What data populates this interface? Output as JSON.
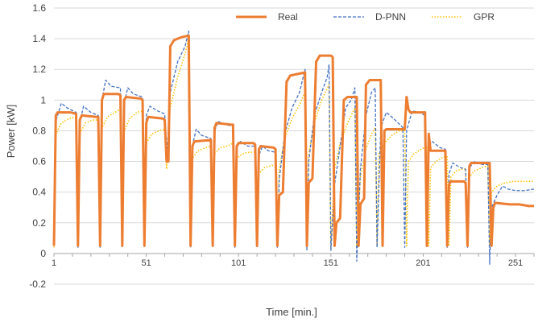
{
  "chart_data": {
    "type": "line",
    "title": "",
    "xlabel": "Time [min.]",
    "ylabel": "Power [kW]",
    "xlim": [
      1,
      261
    ],
    "ylim": [
      -0.2,
      1.6
    ],
    "y_ticks": [
      -0.2,
      0,
      0.2,
      0.4,
      0.6,
      0.8,
      1,
      1.2,
      1.4,
      1.6
    ],
    "y_tick_labels": [
      "-0.2",
      "0",
      "0.2",
      "0.4",
      "0.6",
      "0.8",
      "1",
      "1.2",
      "1.4",
      "1.6"
    ],
    "x_ticks": [
      1,
      51,
      101,
      151,
      201,
      251
    ],
    "x_tick_labels": [
      "1",
      "51",
      "101",
      "151",
      "201",
      "251"
    ],
    "grid": "horizontal",
    "legend_position": "top-right",
    "series": [
      {
        "name": "Real",
        "color": "#ED7D31",
        "style": "solid",
        "points": [
          [
            1,
            0.05
          ],
          [
            2,
            0.9
          ],
          [
            3,
            0.92
          ],
          [
            10,
            0.92
          ],
          [
            13,
            0.91
          ],
          [
            14,
            0.05
          ],
          [
            15,
            0.87
          ],
          [
            16,
            0.9
          ],
          [
            24,
            0.89
          ],
          [
            25,
            0.89
          ],
          [
            26,
            0.05
          ],
          [
            27,
            1.0
          ],
          [
            28,
            1.04
          ],
          [
            36,
            1.04
          ],
          [
            37,
            1.03
          ],
          [
            38,
            0.05
          ],
          [
            39,
            1.0
          ],
          [
            40,
            1.02
          ],
          [
            48,
            1.01
          ],
          [
            49,
            1.0
          ],
          [
            50,
            0.05
          ],
          [
            51,
            0.85
          ],
          [
            52,
            0.89
          ],
          [
            60,
            0.88
          ],
          [
            61,
            0.87
          ],
          [
            62,
            0.6
          ],
          [
            63,
            0.6
          ],
          [
            64,
            1.35
          ],
          [
            66,
            1.39
          ],
          [
            70,
            1.41
          ],
          [
            74,
            1.42
          ],
          [
            75,
            0.05
          ],
          [
            76,
            0.7
          ],
          [
            77,
            0.73
          ],
          [
            86,
            0.74
          ],
          [
            87,
            0.05
          ],
          [
            88,
            0.82
          ],
          [
            89,
            0.85
          ],
          [
            97,
            0.84
          ],
          [
            98,
            0.84
          ],
          [
            99,
            0.05
          ],
          [
            100,
            0.7
          ],
          [
            101,
            0.72
          ],
          [
            109,
            0.72
          ],
          [
            110,
            0.71
          ],
          [
            111,
            0.05
          ],
          [
            112,
            0.68
          ],
          [
            113,
            0.7
          ],
          [
            120,
            0.69
          ],
          [
            121,
            0.68
          ],
          [
            122,
            0.05
          ],
          [
            123,
            0.38
          ],
          [
            125,
            0.4
          ],
          [
            127,
            1.12
          ],
          [
            129,
            1.16
          ],
          [
            137,
            1.18
          ],
          [
            138,
            0.05
          ],
          [
            139,
            0.46
          ],
          [
            141,
            0.49
          ],
          [
            143,
            1.25
          ],
          [
            145,
            1.29
          ],
          [
            151,
            1.29
          ],
          [
            152,
            1.28
          ],
          [
            153,
            0.05
          ],
          [
            154,
            0.2
          ],
          [
            156,
            0.23
          ],
          [
            158,
            1.0
          ],
          [
            160,
            1.02
          ],
          [
            165,
            1.02
          ],
          [
            166,
            0.05
          ],
          [
            167,
            0.32
          ],
          [
            169,
            0.36
          ],
          [
            170,
            1.1
          ],
          [
            172,
            1.13
          ],
          [
            178,
            1.13
          ],
          [
            179,
            0.05
          ],
          [
            180,
            0.8
          ],
          [
            181,
            0.81
          ],
          [
            191,
            0.81
          ],
          [
            192,
            1.02
          ],
          [
            193,
            0.94
          ],
          [
            194,
            0.92
          ],
          [
            202,
            0.92
          ],
          [
            203,
            0.05
          ],
          [
            204,
            0.78
          ],
          [
            205,
            0.67
          ],
          [
            213,
            0.67
          ],
          [
            214,
            0.05
          ],
          [
            215,
            0.45
          ],
          [
            216,
            0.47
          ],
          [
            223,
            0.47
          ],
          [
            224,
            0.46
          ],
          [
            225,
            0.05
          ],
          [
            226,
            0.57
          ],
          [
            227,
            0.59
          ],
          [
            236,
            0.59
          ],
          [
            237,
            0.59
          ],
          [
            238,
            0.05
          ],
          [
            239,
            0.3
          ],
          [
            240,
            0.33
          ],
          [
            248,
            0.32
          ],
          [
            253,
            0.32
          ],
          [
            258,
            0.31
          ],
          [
            261,
            0.31
          ]
        ]
      },
      {
        "name": "D-PNN",
        "color": "#4472C4",
        "style": "dashed",
        "points": [
          [
            1,
            0.05
          ],
          [
            2,
            0.86
          ],
          [
            5,
            0.98
          ],
          [
            8,
            0.95
          ],
          [
            13,
            0.92
          ],
          [
            14,
            0.04
          ],
          [
            15,
            0.85
          ],
          [
            17,
            0.96
          ],
          [
            21,
            0.92
          ],
          [
            25,
            0.9
          ],
          [
            26,
            0.04
          ],
          [
            27,
            1.0
          ],
          [
            29,
            1.13
          ],
          [
            32,
            1.09
          ],
          [
            37,
            1.08
          ],
          [
            38,
            0.04
          ],
          [
            39,
            0.98
          ],
          [
            41,
            1.08
          ],
          [
            44,
            1.04
          ],
          [
            49,
            1.02
          ],
          [
            50,
            0.04
          ],
          [
            51,
            0.9
          ],
          [
            53,
            0.96
          ],
          [
            57,
            0.93
          ],
          [
            61,
            0.91
          ],
          [
            62,
            0.6
          ],
          [
            64,
            1.05
          ],
          [
            68,
            1.25
          ],
          [
            72,
            1.35
          ],
          [
            74,
            1.45
          ],
          [
            75,
            0.04
          ],
          [
            76,
            0.7
          ],
          [
            78,
            0.81
          ],
          [
            81,
            0.77
          ],
          [
            86,
            0.75
          ],
          [
            87,
            0.04
          ],
          [
            88,
            0.8
          ],
          [
            90,
            0.86
          ],
          [
            94,
            0.84
          ],
          [
            98,
            0.83
          ],
          [
            99,
            0.04
          ],
          [
            100,
            0.69
          ],
          [
            102,
            0.73
          ],
          [
            106,
            0.7
          ],
          [
            110,
            0.7
          ],
          [
            111,
            0.04
          ],
          [
            112,
            0.64
          ],
          [
            114,
            0.7
          ],
          [
            117,
            0.67
          ],
          [
            121,
            0.66
          ],
          [
            122,
            0.04
          ],
          [
            123,
            0.48
          ],
          [
            126,
            0.78
          ],
          [
            130,
            0.95
          ],
          [
            134,
            1.05
          ],
          [
            137,
            1.2
          ],
          [
            138,
            0.02
          ],
          [
            139,
            0.6
          ],
          [
            142,
            0.9
          ],
          [
            146,
            1.05
          ],
          [
            149,
            1.15
          ],
          [
            150,
            1.23
          ],
          [
            151,
            0.02
          ],
          [
            153,
            0.45
          ],
          [
            156,
            0.7
          ],
          [
            159,
            0.95
          ],
          [
            162,
            1.0
          ],
          [
            164,
            1.08
          ],
          [
            165,
            -0.05
          ],
          [
            167,
            0.55
          ],
          [
            170,
            0.9
          ],
          [
            173,
            1.05
          ],
          [
            175,
            1.08
          ],
          [
            176,
            0.04
          ],
          [
            178,
            0.82
          ],
          [
            181,
            0.92
          ],
          [
            185,
            0.88
          ],
          [
            190,
            0.82
          ],
          [
            191,
            0.04
          ],
          [
            192,
            0.8
          ],
          [
            195,
            0.93
          ],
          [
            199,
            0.92
          ],
          [
            202,
            0.9
          ],
          [
            203,
            0.04
          ],
          [
            204,
            0.7
          ],
          [
            206,
            0.73
          ],
          [
            210,
            0.69
          ],
          [
            213,
            0.68
          ],
          [
            214,
            0.04
          ],
          [
            215,
            0.52
          ],
          [
            217,
            0.59
          ],
          [
            221,
            0.56
          ],
          [
            224,
            0.55
          ],
          [
            225,
            0.04
          ],
          [
            226,
            0.56
          ],
          [
            229,
            0.6
          ],
          [
            233,
            0.58
          ],
          [
            236,
            0.58
          ],
          [
            237,
            -0.07
          ],
          [
            238,
            0.3
          ],
          [
            241,
            0.38
          ],
          [
            244,
            0.44
          ],
          [
            247,
            0.42
          ],
          [
            251,
            0.41
          ],
          [
            256,
            0.41
          ],
          [
            261,
            0.42
          ]
        ]
      },
      {
        "name": "GPR",
        "color": "#FFC000",
        "style": "dotted",
        "points": [
          [
            1,
            0.04
          ],
          [
            2,
            0.78
          ],
          [
            5,
            0.85
          ],
          [
            9,
            0.88
          ],
          [
            13,
            0.89
          ],
          [
            14,
            0.05
          ],
          [
            15,
            0.78
          ],
          [
            18,
            0.85
          ],
          [
            22,
            0.87
          ],
          [
            25,
            0.87
          ],
          [
            26,
            0.05
          ],
          [
            27,
            0.82
          ],
          [
            30,
            0.89
          ],
          [
            34,
            0.92
          ],
          [
            37,
            0.94
          ],
          [
            38,
            0.05
          ],
          [
            39,
            0.8
          ],
          [
            42,
            0.88
          ],
          [
            46,
            0.92
          ],
          [
            49,
            0.93
          ],
          [
            50,
            0.05
          ],
          [
            51,
            0.72
          ],
          [
            54,
            0.78
          ],
          [
            58,
            0.8
          ],
          [
            61,
            0.81
          ],
          [
            62,
            0.55
          ],
          [
            64,
            0.95
          ],
          [
            68,
            1.15
          ],
          [
            72,
            1.3
          ],
          [
            74,
            1.4
          ],
          [
            75,
            0.05
          ],
          [
            76,
            0.62
          ],
          [
            79,
            0.67
          ],
          [
            83,
            0.69
          ],
          [
            86,
            0.7
          ],
          [
            87,
            0.05
          ],
          [
            88,
            0.65
          ],
          [
            91,
            0.69
          ],
          [
            95,
            0.7
          ],
          [
            98,
            0.72
          ],
          [
            99,
            0.05
          ],
          [
            100,
            0.62
          ],
          [
            103,
            0.65
          ],
          [
            107,
            0.66
          ],
          [
            110,
            0.66
          ],
          [
            111,
            0.05
          ],
          [
            112,
            0.52
          ],
          [
            115,
            0.56
          ],
          [
            118,
            0.57
          ],
          [
            121,
            0.58
          ],
          [
            122,
            0.05
          ],
          [
            123,
            0.55
          ],
          [
            126,
            0.75
          ],
          [
            130,
            0.88
          ],
          [
            134,
            0.97
          ],
          [
            137,
            1.05
          ],
          [
            138,
            0.05
          ],
          [
            139,
            0.65
          ],
          [
            142,
            0.85
          ],
          [
            146,
            1.0
          ],
          [
            150,
            1.1
          ],
          [
            151,
            0.05
          ],
          [
            153,
            0.55
          ],
          [
            156,
            0.72
          ],
          [
            160,
            0.85
          ],
          [
            164,
            0.95
          ],
          [
            165,
            0.05
          ],
          [
            167,
            0.5
          ],
          [
            170,
            0.68
          ],
          [
            173,
            0.78
          ],
          [
            175,
            0.82
          ],
          [
            176,
            0.05
          ],
          [
            177,
            0.65
          ],
          [
            180,
            0.72
          ],
          [
            184,
            0.77
          ],
          [
            188,
            0.8
          ],
          [
            191,
            0.8
          ],
          [
            192,
            0.05
          ],
          [
            193,
            0.6
          ],
          [
            196,
            0.65
          ],
          [
            200,
            0.68
          ],
          [
            203,
            0.7
          ],
          [
            204,
            0.05
          ],
          [
            205,
            0.56
          ],
          [
            208,
            0.6
          ],
          [
            212,
            0.63
          ],
          [
            214,
            0.63
          ],
          [
            215,
            0.05
          ],
          [
            216,
            0.5
          ],
          [
            219,
            0.54
          ],
          [
            222,
            0.55
          ],
          [
            224,
            0.55
          ],
          [
            225,
            0.05
          ],
          [
            226,
            0.5
          ],
          [
            229,
            0.54
          ],
          [
            233,
            0.56
          ],
          [
            236,
            0.57
          ],
          [
            237,
            0.05
          ],
          [
            238,
            0.4
          ],
          [
            241,
            0.44
          ],
          [
            245,
            0.46
          ],
          [
            250,
            0.47
          ],
          [
            255,
            0.47
          ],
          [
            261,
            0.47
          ]
        ]
      }
    ]
  }
}
